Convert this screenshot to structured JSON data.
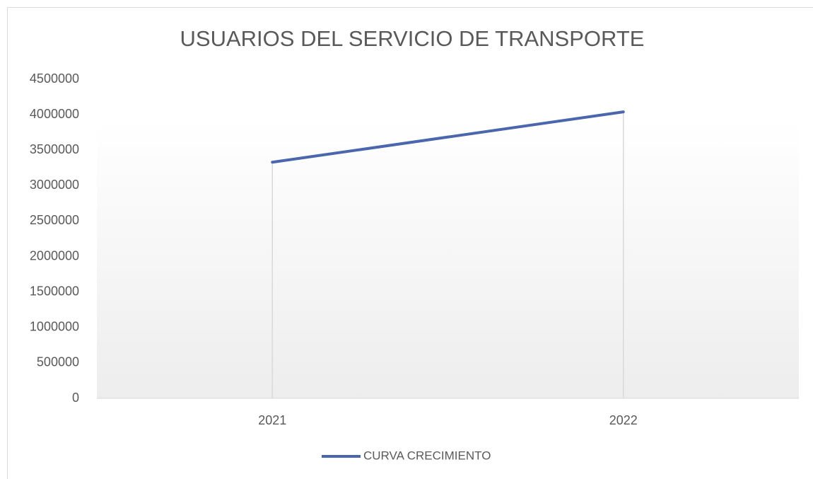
{
  "chart_data": {
    "type": "line",
    "title": "USUARIOS DEL SERVICIO DE TRANSPORTE",
    "categories": [
      "2021",
      "2022"
    ],
    "series": [
      {
        "name": "CURVA CRECIMIENTO",
        "color": "#4a66ac",
        "values": [
          3330000,
          4040000
        ]
      }
    ],
    "ylim": [
      0,
      4500000
    ],
    "yticks": [
      0,
      500000,
      1000000,
      1500000,
      2000000,
      2500000,
      3000000,
      3500000,
      4000000,
      4500000
    ],
    "drop_lines": true,
    "legend": "bottom"
  }
}
